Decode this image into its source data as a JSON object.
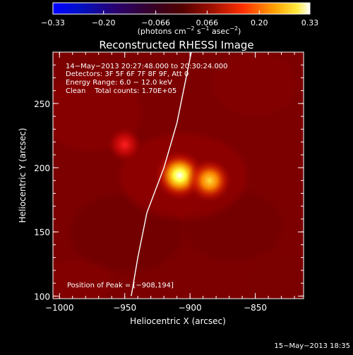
{
  "chart_data": {
    "type": "heatmap",
    "title": "Reconstructed RHESSI Image",
    "xlabel": "Heliocentric X (arcsec)",
    "ylabel": "Heliocentric Y (arcsec)",
    "xlim": [
      -1005,
      -813
    ],
    "ylim": [
      98,
      290
    ],
    "x_ticks": [
      -1000,
      -950,
      -900,
      -850
    ],
    "y_ticks": [
      100,
      150,
      200,
      250
    ],
    "x_tick_labels": [
      "−1000",
      "−950",
      "−900",
      "−850"
    ],
    "y_tick_labels": [
      "100",
      "150",
      "200",
      "250"
    ],
    "colorbar": {
      "min": -0.33,
      "max": 0.33,
      "ticks": [
        -0.33,
        -0.2,
        -0.066,
        0.066,
        0.2,
        0.33
      ],
      "tick_labels": [
        "−0.33",
        "−0.20",
        "−0.066",
        "0.066",
        "0.20",
        "0.33"
      ],
      "units_text": "(photons cm",
      "units_sup1": "−2",
      "units_mid": " s",
      "units_sup2": "−1",
      "units_mid2": " asec",
      "units_sup3": "−2",
      "units_close": ")",
      "colormap": "RHESSI red-temperature"
    },
    "info_lines": [
      "14−May−2013 20:27:48.000 to 20:30:24.000",
      "Detectors: 3F 5F 6F 7F 8F 9F, Att 0",
      "Energy Range: 6.0 − 12.0 keV",
      "Clean    Total counts: 1.70E+05"
    ],
    "peak_label": "Position of Peak = [−908,194]",
    "sources": [
      {
        "x": -908,
        "y": 194,
        "peak": 0.33
      },
      {
        "x": -885,
        "y": 190,
        "peak": 0.25
      },
      {
        "x": -950,
        "y": 218,
        "peak": 0.14
      }
    ],
    "limb_curve": [
      [
        -945,
        100
      ],
      [
        -940,
        130
      ],
      [
        -933,
        165
      ],
      [
        -920,
        200
      ],
      [
        -910,
        235
      ],
      [
        -905,
        260
      ],
      [
        -899,
        290
      ]
    ],
    "grid": false
  },
  "footer": {
    "date": "15−May−2013 18:35"
  },
  "colors": {
    "background": "#000000",
    "foreground": "#ffffff"
  }
}
